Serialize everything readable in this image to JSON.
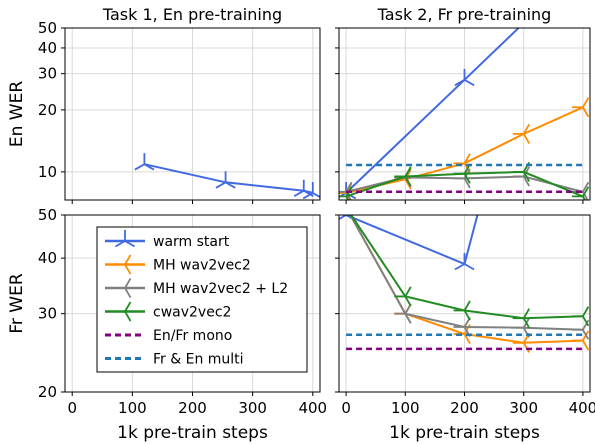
{
  "chart_data": [
    {
      "type": "line",
      "id": "en_task1",
      "title": "Task 1, En pre-training",
      "ylabel": "En WER",
      "xlabel": "",
      "y_scale": "log",
      "xlim": [
        -12,
        412
      ],
      "ylim": [
        7.3,
        50
      ],
      "x_ticks": [
        0,
        100,
        200,
        300,
        400
      ],
      "y_ticks": [
        10,
        20,
        30,
        40,
        50
      ],
      "grid": true,
      "series": [
        {
          "name": "warm start",
          "color": "#4169e1",
          "marker": "tri_down",
          "x": [
            120,
            255,
            385,
            400
          ],
          "y": [
            10.9,
            8.9,
            8.1,
            7.9
          ]
        }
      ]
    },
    {
      "type": "line",
      "id": "en_task2",
      "title": "Task 2, Fr pre-training",
      "ylabel": "",
      "xlabel": "",
      "y_scale": "log",
      "xlim": [
        -12,
        412
      ],
      "ylim": [
        7.3,
        50
      ],
      "x_ticks": [
        0,
        100,
        200,
        300,
        400
      ],
      "y_ticks": [
        10,
        20,
        30,
        40,
        50
      ],
      "grid": true,
      "series": [
        {
          "name": "warm start",
          "color": "#4169e1",
          "marker": "tri_down",
          "x": [
            0,
            200,
            320
          ],
          "y": [
            7.9,
            28.0,
            60.0
          ]
        },
        {
          "name": "MH wav2vec2",
          "color": "#ff8c00",
          "marker": "tri_left",
          "x": [
            0,
            100,
            200,
            300,
            400
          ],
          "y": [
            7.9,
            9.2,
            11.0,
            15.3,
            20.6
          ]
        },
        {
          "name": "MH wav2vec2 + L2",
          "color": "#808080",
          "marker": "tri_left",
          "x": [
            0,
            100,
            200,
            300,
            400
          ],
          "y": [
            8.0,
            9.4,
            9.3,
            9.5,
            8.0
          ]
        },
        {
          "name": "cwav2vec2",
          "color": "#228b22",
          "marker": "tri_left",
          "x": [
            0,
            100,
            200,
            300,
            400
          ],
          "y": [
            7.6,
            9.5,
            9.8,
            10.0,
            7.6
          ]
        },
        {
          "name": "En/Fr mono",
          "color": "#800080",
          "dashed": true,
          "x": [
            0,
            400
          ],
          "y": [
            8.0,
            8.0
          ]
        },
        {
          "name": "Fr & En multi",
          "color": "#1f77b4",
          "dashed": true,
          "x": [
            0,
            400
          ],
          "y": [
            10.8,
            10.8
          ]
        }
      ]
    },
    {
      "type": "line",
      "id": "fr_task1",
      "title": "",
      "ylabel": "Fr WER",
      "xlabel": "1k pre-train steps",
      "y_scale": "log",
      "xlim": [
        -12,
        412
      ],
      "ylim": [
        20,
        50
      ],
      "x_ticks": [
        0,
        100,
        200,
        300,
        400
      ],
      "y_ticks": [
        20,
        30,
        40,
        50
      ],
      "grid": true,
      "series": []
    },
    {
      "type": "line",
      "id": "fr_task2",
      "title": "",
      "ylabel": "",
      "xlabel": "1k pre-train steps",
      "y_scale": "log",
      "xlim": [
        -12,
        412
      ],
      "ylim": [
        20,
        50
      ],
      "x_ticks": [
        0,
        100,
        200,
        300,
        400
      ],
      "y_ticks": [
        20,
        30,
        40,
        50
      ],
      "grid": true,
      "series": [
        {
          "name": "warm start",
          "color": "#4169e1",
          "marker": "tri_down",
          "x": [
            0,
            200,
            230
          ],
          "y": [
            50.0,
            38.8,
            55.0
          ]
        },
        {
          "name": "MH wav2vec2",
          "color": "#ff8c00",
          "marker": "tri_left",
          "x": [
            0,
            100,
            200,
            300,
            400
          ],
          "y": [
            52.0,
            30.0,
            27.0,
            25.8,
            26.1
          ]
        },
        {
          "name": "MH wav2vec2 + L2",
          "color": "#808080",
          "marker": "tri_left",
          "x": [
            0,
            100,
            200,
            300,
            400
          ],
          "y": [
            52.0,
            30.0,
            28.0,
            27.9,
            27.6
          ]
        },
        {
          "name": "cwav2vec2",
          "color": "#228b22",
          "marker": "tri_left",
          "x": [
            0,
            100,
            200,
            300,
            400
          ],
          "y": [
            52.0,
            32.8,
            30.5,
            29.3,
            29.6
          ]
        },
        {
          "name": "En/Fr mono",
          "color": "#800080",
          "dashed": true,
          "x": [
            0,
            400
          ],
          "y": [
            25.0,
            25.0
          ]
        },
        {
          "name": "Fr & En multi",
          "color": "#1f77b4",
          "dashed": true,
          "x": [
            0,
            400
          ],
          "y": [
            26.9,
            26.9
          ]
        }
      ]
    }
  ],
  "legend": {
    "location": "inside-bottom-left-panel",
    "entries": [
      {
        "label": "warm start",
        "color": "#4169e1",
        "style": "solid",
        "marker": "tri_down"
      },
      {
        "label": "MH wav2vec2",
        "color": "#ff8c00",
        "style": "solid",
        "marker": "tri_left"
      },
      {
        "label": "MH wav2vec2 + L2",
        "color": "#808080",
        "style": "solid",
        "marker": "tri_left"
      },
      {
        "label": "cwav2vec2",
        "color": "#228b22",
        "style": "solid",
        "marker": "tri_left"
      },
      {
        "label": "En/Fr mono",
        "color": "#800080",
        "style": "dashed"
      },
      {
        "label": "Fr & En multi",
        "color": "#1f77b4",
        "style": "dashed"
      }
    ]
  }
}
